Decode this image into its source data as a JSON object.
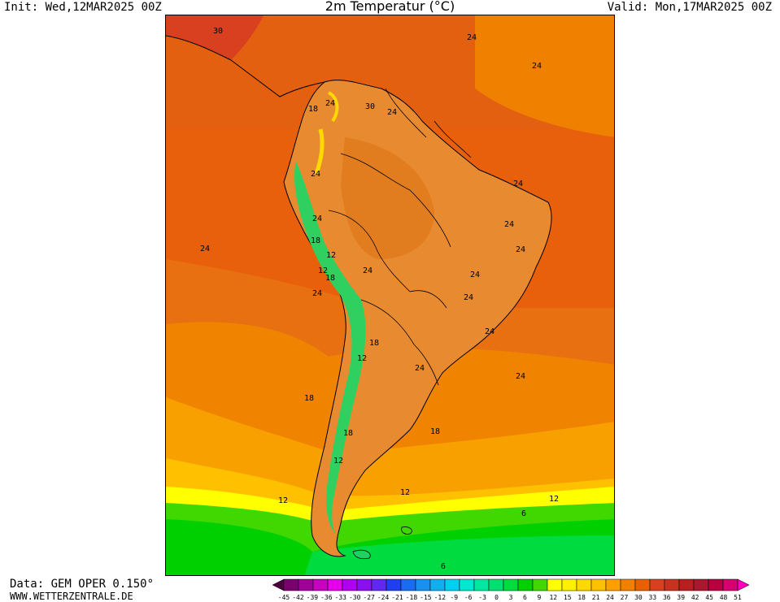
{
  "header": {
    "init": "Init: Wed,12MAR2025 00Z",
    "title": "2m Temperatur (°C)",
    "valid": "Valid: Mon,17MAR2025 00Z"
  },
  "footer": {
    "source": "Data: GEM OPER 0.150°",
    "website": "WWW.WETTERZENTRALE.DE"
  },
  "map": {
    "region": "South America",
    "contour_labels": [
      "30",
      "24",
      "24",
      "18",
      "24",
      "30",
      "24",
      "24",
      "24",
      "24",
      "24",
      "18",
      "12",
      "24",
      "12",
      "18",
      "24",
      "24",
      "24",
      "24",
      "24",
      "18",
      "12",
      "24",
      "24",
      "18",
      "18",
      "18",
      "24",
      "12",
      "12",
      "12",
      "12",
      "6",
      "6"
    ]
  },
  "legend": {
    "ticks": [
      "-45",
      "-42",
      "-39",
      "-36",
      "-33",
      "-30",
      "-27",
      "-24",
      "-21",
      "-18",
      "-15",
      "-12",
      "-9",
      "-6",
      "-3",
      "0",
      "3",
      "6",
      "9",
      "12",
      "15",
      "18",
      "21",
      "24",
      "27",
      "30",
      "33",
      "36",
      "39",
      "42",
      "45",
      "48",
      "51"
    ],
    "colors": [
      "#4b0040",
      "#7a0070",
      "#a0009a",
      "#c800c0",
      "#e400e8",
      "#b000f0",
      "#8a10f0",
      "#6028f0",
      "#2040f0",
      "#1a6cf0",
      "#1890f0",
      "#10b0f0",
      "#00d0f0",
      "#00e8d0",
      "#00e8a0",
      "#00e070",
      "#00dc40",
      "#00d000",
      "#40d800",
      "#ffff00",
      "#fff000",
      "#ffd800",
      "#ffc000",
      "#ffa000",
      "#f08000",
      "#e86000",
      "#d84020",
      "#c83020",
      "#b82020",
      "#a81830",
      "#b80040",
      "#d80070",
      "#ff00c0"
    ]
  }
}
